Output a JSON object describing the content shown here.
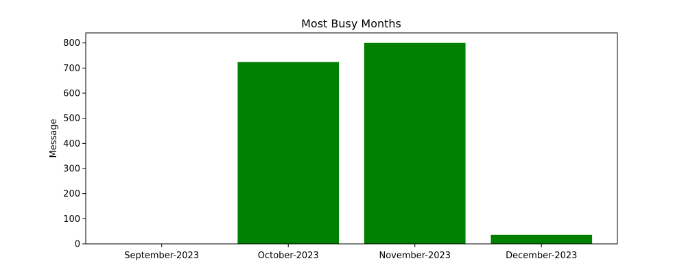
{
  "chart_data": {
    "type": "bar",
    "title": "Most Busy Months",
    "xlabel": "",
    "ylabel": "Message",
    "categories": [
      "September-2023",
      "October-2023",
      "November-2023",
      "December-2023"
    ],
    "values": [
      1,
      724,
      800,
      36
    ],
    "ylim": [
      0,
      840
    ],
    "yticks": [
      0,
      100,
      200,
      300,
      400,
      500,
      600,
      700,
      800
    ],
    "bar_color": "#008000",
    "grid": false,
    "legend": "none"
  }
}
